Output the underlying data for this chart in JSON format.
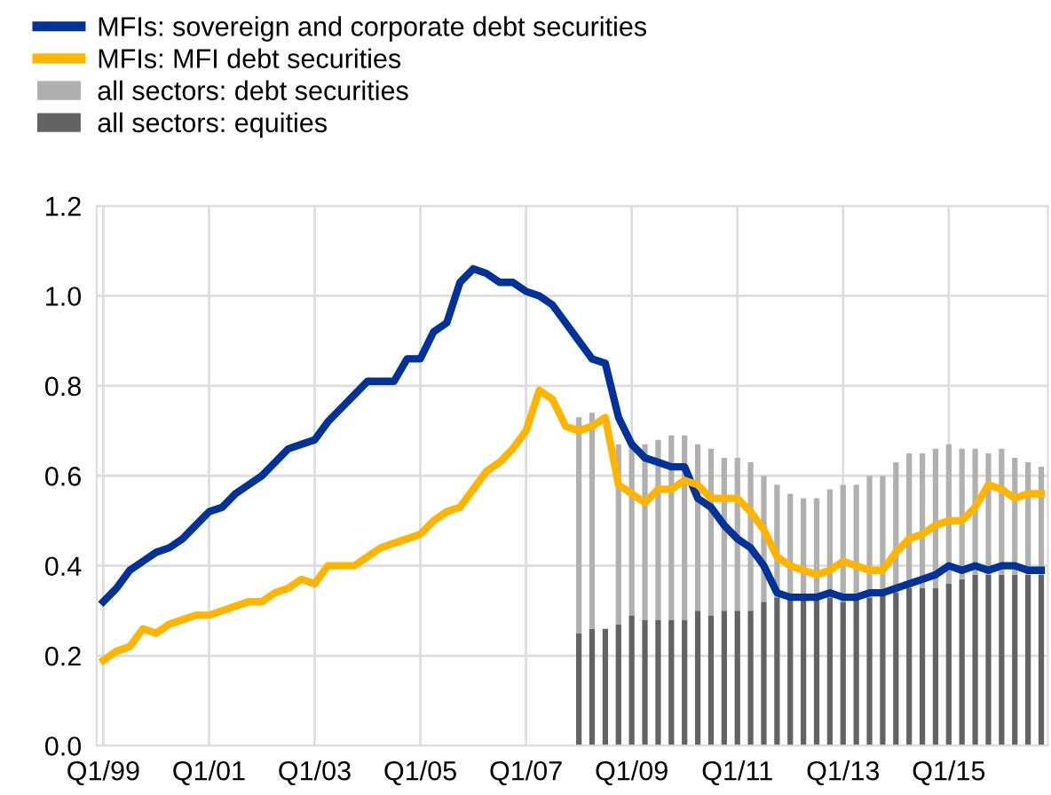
{
  "chart_data": {
    "type": "line",
    "categories": [
      "Q1/99",
      null,
      null,
      null,
      null,
      null,
      null,
      null,
      "Q1/01",
      null,
      null,
      null,
      null,
      null,
      null,
      null,
      "Q1/03",
      null,
      null,
      null,
      null,
      null,
      null,
      null,
      "Q1/05",
      null,
      null,
      null,
      null,
      null,
      null,
      null,
      "Q1/07",
      null,
      null,
      null,
      null,
      null,
      null,
      null,
      "Q1/09",
      null,
      null,
      null,
      null,
      null,
      null,
      null,
      "Q1/11",
      null,
      null,
      null,
      null,
      null,
      null,
      null,
      "Q1/13",
      null,
      null,
      null,
      null,
      null,
      null,
      null,
      "Q1/15",
      null,
      null,
      null,
      null,
      null,
      null,
      null
    ],
    "series": [
      {
        "name": "all sectors: equities",
        "type": "bar",
        "color": "#636363",
        "values": [
          null,
          null,
          null,
          null,
          null,
          null,
          null,
          null,
          null,
          null,
          null,
          null,
          null,
          null,
          null,
          null,
          null,
          null,
          null,
          null,
          null,
          null,
          null,
          null,
          null,
          null,
          null,
          null,
          null,
          null,
          null,
          null,
          null,
          null,
          null,
          null,
          0.25,
          0.26,
          0.26,
          0.27,
          0.29,
          0.28,
          0.28,
          0.28,
          0.28,
          0.3,
          0.29,
          0.3,
          0.3,
          0.3,
          0.32,
          0.33,
          0.33,
          0.33,
          0.33,
          0.33,
          0.32,
          0.33,
          0.33,
          0.34,
          0.34,
          0.35,
          0.35,
          0.35,
          0.36,
          0.37,
          0.38,
          0.38,
          0.38,
          0.38,
          0.38,
          0.38
        ]
      },
      {
        "name": "all sectors: debt securities",
        "type": "bar",
        "color": "#b0b0b0",
        "values": [
          null,
          null,
          null,
          null,
          null,
          null,
          null,
          null,
          null,
          null,
          null,
          null,
          null,
          null,
          null,
          null,
          null,
          null,
          null,
          null,
          null,
          null,
          null,
          null,
          null,
          null,
          null,
          null,
          null,
          null,
          null,
          null,
          null,
          null,
          null,
          null,
          0.48,
          0.48,
          null,
          0.4,
          0.38,
          0.39,
          0.4,
          0.41,
          0.41,
          0.37,
          0.37,
          0.34,
          0.34,
          0.33,
          0.28,
          0.25,
          0.23,
          0.22,
          0.22,
          0.24,
          0.26,
          0.25,
          0.27,
          0.26,
          0.29,
          0.3,
          0.3,
          0.31,
          0.31,
          0.29,
          0.28,
          0.27,
          0.28,
          0.26,
          0.25,
          0.24
        ]
      },
      {
        "name": "MFIs: sovereign and corporate debt securities",
        "color": "#003299",
        "values": [
          0.32,
          0.35,
          0.39,
          0.41,
          0.43,
          0.44,
          0.46,
          0.49,
          0.52,
          0.53,
          0.56,
          0.58,
          0.6,
          0.63,
          0.66,
          0.67,
          0.68,
          0.72,
          0.75,
          0.78,
          0.81,
          0.81,
          0.81,
          0.86,
          0.86,
          0.92,
          0.94,
          1.03,
          1.06,
          1.05,
          1.03,
          1.03,
          1.01,
          1.0,
          0.98,
          0.94,
          0.9,
          0.86,
          0.85,
          0.73,
          0.67,
          0.64,
          0.63,
          0.62,
          0.62,
          0.55,
          0.53,
          0.49,
          0.46,
          0.44,
          0.4,
          0.34,
          0.33,
          0.33,
          0.33,
          0.34,
          0.33,
          0.33,
          0.34,
          0.34,
          0.35,
          0.36,
          0.37,
          0.38,
          0.4,
          0.39,
          0.4,
          0.39,
          0.4,
          0.4,
          0.39,
          0.39
        ]
      },
      {
        "name": "MFIs: MFI debt securities",
        "color": "#ffb400",
        "values": [
          0.19,
          0.21,
          0.22,
          0.26,
          0.25,
          0.27,
          0.28,
          0.29,
          0.29,
          0.3,
          0.31,
          0.32,
          0.32,
          0.34,
          0.35,
          0.37,
          0.36,
          0.4,
          0.4,
          0.4,
          0.42,
          0.44,
          0.45,
          0.46,
          0.47,
          0.5,
          0.52,
          0.53,
          0.57,
          0.61,
          0.63,
          0.66,
          0.7,
          0.79,
          0.77,
          0.71,
          0.7,
          0.71,
          0.73,
          0.58,
          0.56,
          0.54,
          0.57,
          0.57,
          0.59,
          0.58,
          0.55,
          0.55,
          0.55,
          0.52,
          0.48,
          0.42,
          0.4,
          0.39,
          0.38,
          0.39,
          0.41,
          0.4,
          0.39,
          0.39,
          0.43,
          0.46,
          0.47,
          0.49,
          0.5,
          0.5,
          0.53,
          0.58,
          0.57,
          0.55,
          0.56,
          0.56
        ]
      }
    ],
    "ylim": [
      0.0,
      1.2
    ],
    "yticks": [
      {
        "value": 0.0,
        "label": "0.0"
      },
      0.2,
      0.4,
      0.6,
      0.8,
      {
        "value": 1.0,
        "label": "1.0"
      },
      1.2
    ],
    "stacked": true,
    "grid": true,
    "legend": "top left"
  }
}
